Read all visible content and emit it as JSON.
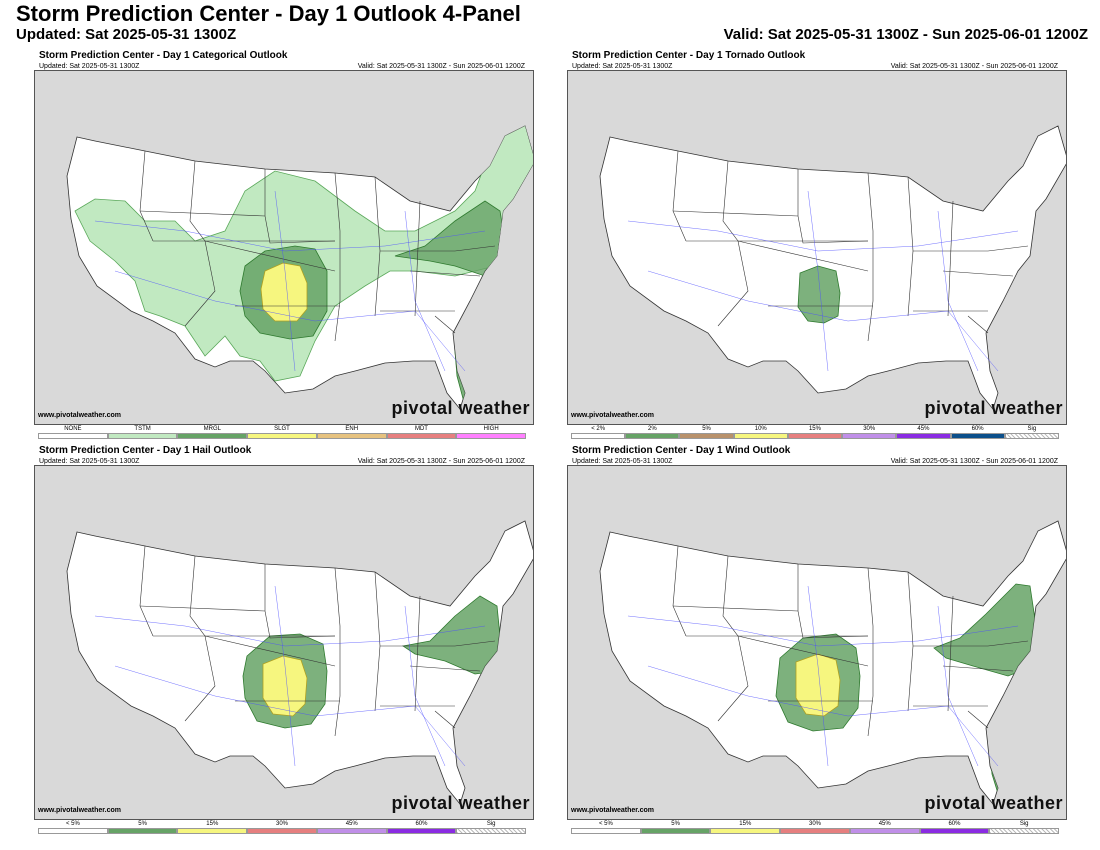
{
  "header": {
    "title": "Storm Prediction Center - Day 1 Outlook 4-Panel",
    "updated": "Updated: Sat 2025-05-31 1300Z",
    "valid": "Valid: Sat 2025-05-31 1300Z - Sun 2025-06-01 1200Z"
  },
  "panels": [
    {
      "title": "Storm Prediction Center - Day 1 Categorical Outlook",
      "updated": "Updated: Sat 2025-05-31 1300Z",
      "valid": "Valid: Sat 2025-05-31 1300Z - Sun 2025-06-01 1200Z",
      "credit": "www.pivotalweather.com",
      "brand": "pivotal weather",
      "legend": [
        {
          "label": "NONE",
          "color": "#ffffff"
        },
        {
          "label": "TSTM",
          "color": "#c1e9c1"
        },
        {
          "label": "MRGL",
          "color": "#66a366"
        },
        {
          "label": "SLGT",
          "color": "#f6f67f"
        },
        {
          "label": "ENH",
          "color": "#e6c27f"
        },
        {
          "label": "MDT",
          "color": "#e67f7f"
        },
        {
          "label": "HIGH",
          "color": "#ff80ff"
        }
      ]
    },
    {
      "title": "Storm Prediction Center - Day 1 Tornado Outlook",
      "updated": "Updated: Sat 2025-05-31 1300Z",
      "valid": "Valid: Sat 2025-05-31 1300Z - Sun 2025-06-01 1200Z",
      "credit": "www.pivotalweather.com",
      "brand": "pivotal weather",
      "legend": [
        {
          "label": "< 2%",
          "color": "#ffffff"
        },
        {
          "label": "2%",
          "color": "#66a366"
        },
        {
          "label": "5%",
          "color": "#b8916b"
        },
        {
          "label": "10%",
          "color": "#f6f67f"
        },
        {
          "label": "15%",
          "color": "#e67f7f"
        },
        {
          "label": "30%",
          "color": "#c08fe8"
        },
        {
          "label": "45%",
          "color": "#8a2be2"
        },
        {
          "label": "60%",
          "color": "#0b4f8a"
        },
        {
          "label": "Sig",
          "color": "sig"
        }
      ]
    },
    {
      "title": "Storm Prediction Center - Day 1 Hail Outlook",
      "updated": "Updated: Sat 2025-05-31 1300Z",
      "valid": "Valid: Sat 2025-05-31 1300Z - Sun 2025-06-01 1200Z",
      "credit": "www.pivotalweather.com",
      "brand": "pivotal weather",
      "legend": [
        {
          "label": "< 5%",
          "color": "#ffffff"
        },
        {
          "label": "5%",
          "color": "#66a366"
        },
        {
          "label": "15%",
          "color": "#f6f67f"
        },
        {
          "label": "30%",
          "color": "#e67f7f"
        },
        {
          "label": "45%",
          "color": "#c08fe8"
        },
        {
          "label": "60%",
          "color": "#8a2be2"
        },
        {
          "label": "Sig",
          "color": "sig"
        }
      ]
    },
    {
      "title": "Storm Prediction Center - Day 1 Wind Outlook",
      "updated": "Updated: Sat 2025-05-31 1300Z",
      "valid": "Valid: Sat 2025-05-31 1300Z - Sun 2025-06-01 1200Z",
      "credit": "www.pivotalweather.com",
      "brand": "pivotal weather",
      "legend": [
        {
          "label": "< 5%",
          "color": "#ffffff"
        },
        {
          "label": "5%",
          "color": "#66a366"
        },
        {
          "label": "15%",
          "color": "#f6f67f"
        },
        {
          "label": "30%",
          "color": "#e67f7f"
        },
        {
          "label": "45%",
          "color": "#c08fe8"
        },
        {
          "label": "60%",
          "color": "#8a2be2"
        },
        {
          "label": "Sig",
          "color": "sig"
        }
      ]
    }
  ],
  "colors": {
    "land": "#ffffff",
    "outside_land": "#d9d9d9",
    "state_border": "#333333",
    "highway": "#4d4dff"
  }
}
